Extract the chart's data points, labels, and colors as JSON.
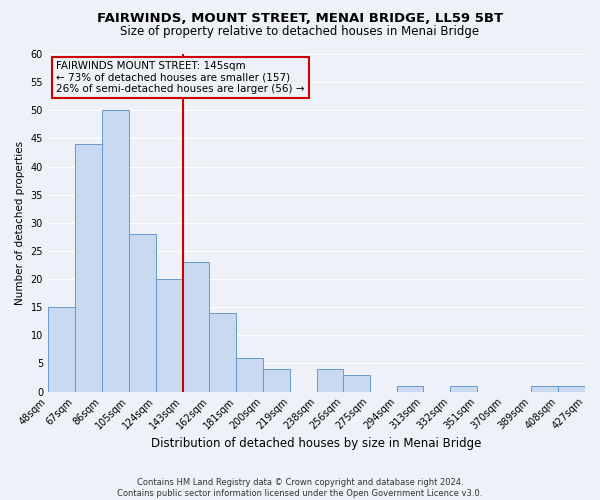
{
  "title": "FAIRWINDS, MOUNT STREET, MENAI BRIDGE, LL59 5BT",
  "subtitle": "Size of property relative to detached houses in Menai Bridge",
  "xlabel": "Distribution of detached houses by size in Menai Bridge",
  "ylabel": "Number of detached properties",
  "bin_edges": [
    48,
    67,
    86,
    105,
    124,
    143,
    162,
    181,
    200,
    219,
    238,
    256,
    275,
    294,
    313,
    332,
    351,
    370,
    389,
    408,
    427
  ],
  "bar_heights": [
    15,
    44,
    50,
    28,
    20,
    23,
    14,
    6,
    4,
    0,
    4,
    3,
    0,
    1,
    0,
    1,
    0,
    0,
    1,
    1
  ],
  "bar_color": "#c9d9f0",
  "bar_edge_color": "#6699cc",
  "vline_x": 143,
  "vline_color": "#cc0000",
  "ylim": [
    0,
    60
  ],
  "yticks": [
    0,
    5,
    10,
    15,
    20,
    25,
    30,
    35,
    40,
    45,
    50,
    55,
    60
  ],
  "annotation_line1": "FAIRWINDS MOUNT STREET: 145sqm",
  "annotation_line2": "← 73% of detached houses are smaller (157)",
  "annotation_line3": "26% of semi-detached houses are larger (56) →",
  "annotation_box_color": "#cc0000",
  "background_color": "#eef2f8",
  "grid_color": "#ffffff",
  "footer_line1": "Contains HM Land Registry data © Crown copyright and database right 2024.",
  "footer_line2": "Contains public sector information licensed under the Open Government Licence v3.0.",
  "title_fontsize": 9.5,
  "subtitle_fontsize": 8.5,
  "xlabel_fontsize": 8.5,
  "ylabel_fontsize": 7.5,
  "tick_fontsize": 7.0,
  "annotation_fontsize": 7.5,
  "footer_fontsize": 6.0
}
